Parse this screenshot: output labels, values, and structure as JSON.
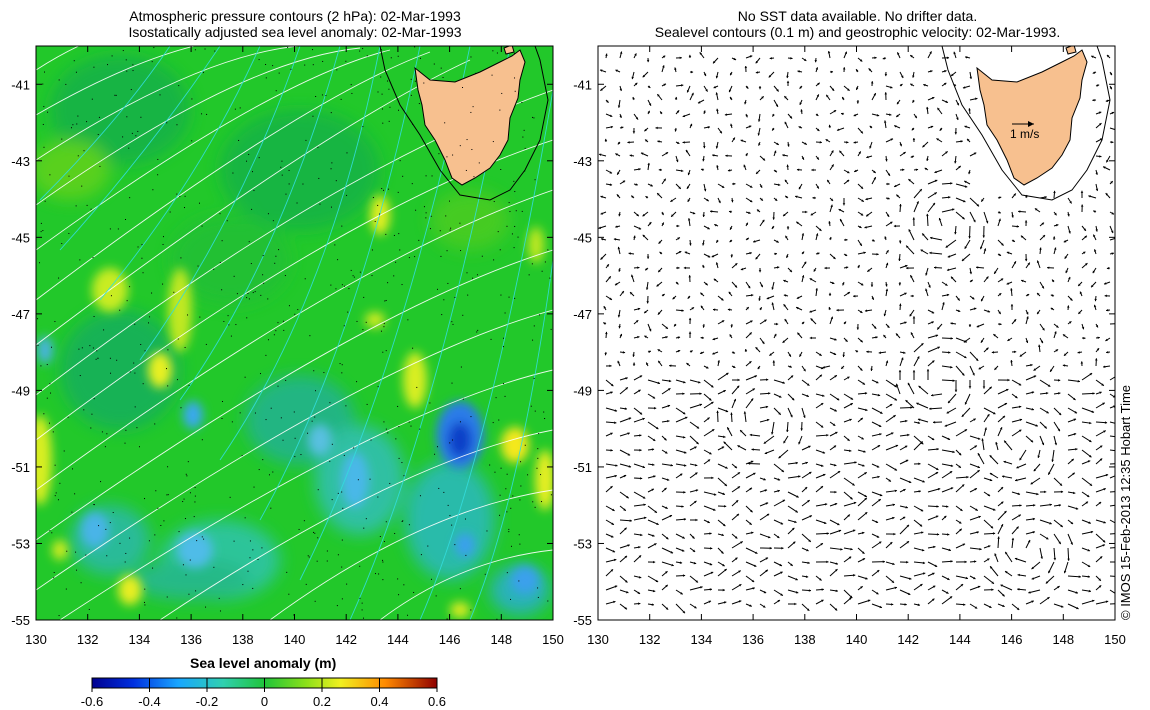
{
  "left_panel": {
    "title_lines": [
      "Atmospheric pressure contours (2 hPa): 02-Mar-1993",
      "Isostatically adjusted sea level anomaly: 02-Mar-1993"
    ]
  },
  "right_panel": {
    "title_lines": [
      "No SST data available.  No drifter data.",
      "Sealevel contours (0.1 m) and geostrophic velocity: 02-Mar-1993."
    ],
    "scale_arrow_label": "1 m/s"
  },
  "axes": {
    "x_ticks": [
      "130",
      "132",
      "134",
      "136",
      "138",
      "140",
      "142",
      "144",
      "146",
      "148",
      "150"
    ],
    "y_ticks": [
      "-41",
      "-43",
      "-45",
      "-47",
      "-49",
      "-51",
      "-53",
      "-55"
    ]
  },
  "colorbar": {
    "label": "Sea level anomaly (m)",
    "ticks": [
      "-0.6",
      "-0.4",
      "-0.2",
      "0",
      "0.2",
      "0.4",
      "0.6"
    ]
  },
  "credit": "© IMOS 15-Feb-2013 12:35 Hobart Time",
  "colors": {
    "background_field": "#22cc22",
    "land": "#f7c08f",
    "pressure_contours": "#ffffff",
    "sealevel_contours": "#33cccc",
    "velocity_vectors": "#000000"
  }
}
